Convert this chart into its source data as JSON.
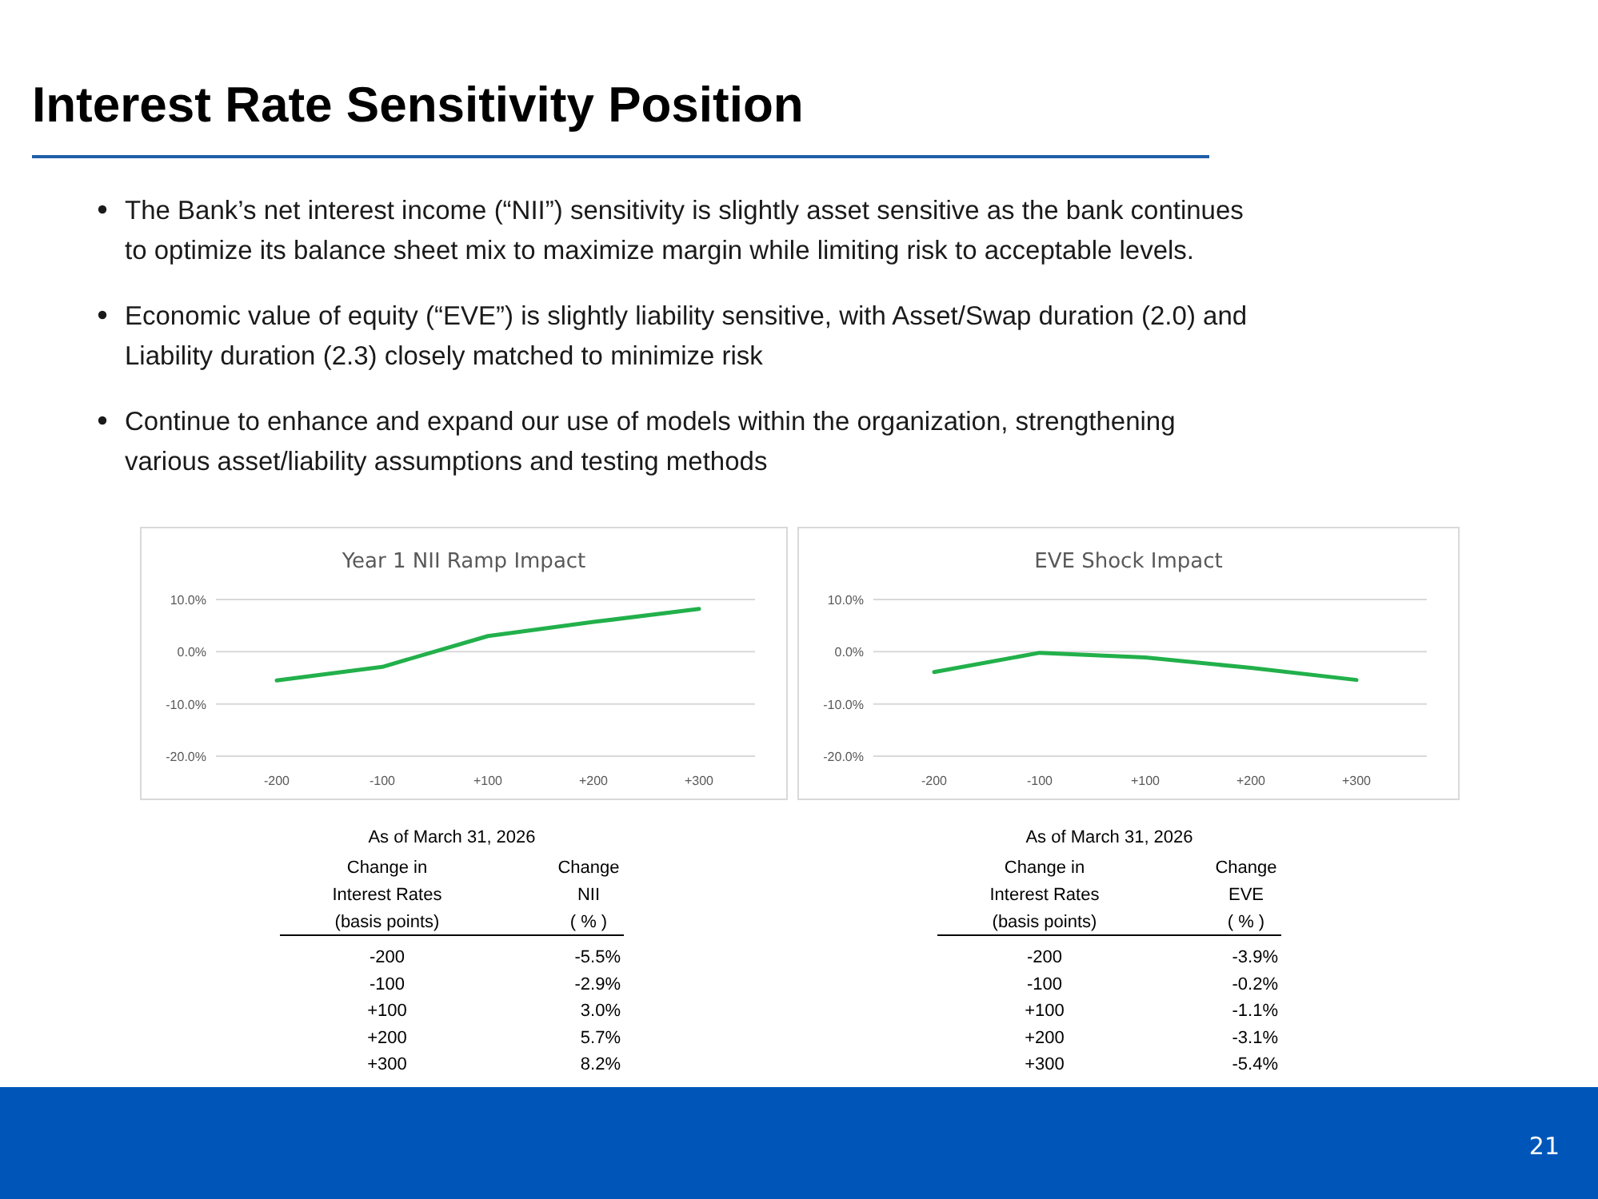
{
  "chart_data": [
    {
      "type": "line",
      "title": "Year 1 NII Ramp Impact",
      "categories": [
        "-200",
        "-100",
        "+100",
        "+200",
        "+300"
      ],
      "series": [
        {
          "color": "#22b04b",
          "values": [
            -5.5,
            -2.9,
            3.0,
            5.7,
            8.2
          ]
        }
      ],
      "ylim": [
        -20,
        10
      ],
      "yticks": [
        {
          "value": -20,
          "label": "-20.0%"
        },
        {
          "value": -10,
          "label": "-10.0%"
        },
        {
          "value": 0,
          "label": "0.0%"
        },
        {
          "value": 10,
          "label": "10.0%"
        }
      ],
      "grid": "y",
      "annotations": [
        "As of March 31, 2026",
        "Change in\nInterest Rates\n(basis points)",
        "Change\nNII\n( % )",
        "-5.5%",
        "-2.9%",
        "3.0%",
        "5.7%",
        "8.2%",
        "Interest Rate Sensitivity Position",
        "The Bank’s net interest income (“NII”) sensitivity is slightly asset sensitive as the bank continues\nto optimize its balance sheet mix to maximize margin while limiting risk to acceptable levels.",
        "Economic value of equity (“EVE”) is slightly liability sensitive, with Asset/Swap duration (2.0) and\nLiability duration (2.3) closely matched to minimize risk",
        "Continue to enhance and expand our use of models within the organization, strengthening\nvarious asset/liability assumptions and testing methods",
        "21"
      ]
    },
    {
      "type": "line",
      "title": "EVE Shock Impact",
      "categories": [
        "-200",
        "-100",
        "+100",
        "+200",
        "+300"
      ],
      "series": [
        {
          "color": "#22b04b",
          "values": [
            -3.9,
            -0.2,
            -1.1,
            -3.1,
            -5.4
          ]
        }
      ],
      "ylim": [
        -20,
        10
      ],
      "yticks": [
        {
          "value": -20,
          "label": "-20.0%"
        },
        {
          "value": -10,
          "label": "-10.0%"
        },
        {
          "value": 0,
          "label": "0.0%"
        },
        {
          "value": 10,
          "label": "10.0%"
        }
      ],
      "grid": "y",
      "annotations": [
        "As of March 31, 2026",
        "Change in\nInterest Rates\n(basis points)",
        "Change\nEVE\n( % )",
        "-3.9%",
        "-0.2%",
        "-1.1%",
        "-3.1%",
        "-5.4%"
      ]
    }
  ]
}
